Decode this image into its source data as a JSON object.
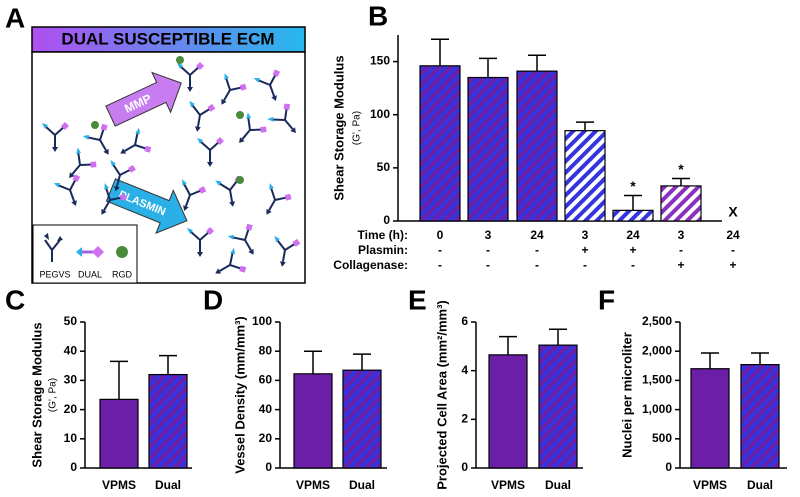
{
  "diagram": {
    "panel": "A",
    "title": "DUAL SUSCEPTIBLE ECM",
    "arrows": [
      "MMP",
      "PLASMIN"
    ],
    "legend": [
      "PEGVS",
      "DUAL",
      "RGD"
    ]
  },
  "chart_data": [
    {
      "panel": "B",
      "type": "bar",
      "ylabel": "Shear Storage Modulus",
      "ylabel_sub": "(G', Pa)",
      "xlabel": "Time (h):",
      "categories": [
        "0",
        "3",
        "24",
        "3",
        "24",
        "3",
        "24"
      ],
      "values": [
        146,
        135,
        141,
        85,
        10,
        33,
        null
      ],
      "errors": [
        25,
        18,
        15,
        8,
        14,
        7,
        null
      ],
      "significance": [
        null,
        null,
        null,
        null,
        "*",
        "*",
        "X"
      ],
      "category_rows": [
        {
          "name": "Plasmin:",
          "values": [
            "-",
            "-",
            "-",
            "+",
            "+",
            "-",
            "-"
          ]
        },
        {
          "name": "Collagenase:",
          "values": [
            "-",
            "-",
            "-",
            "-",
            "-",
            "+",
            "+"
          ]
        }
      ],
      "fill_colors": [
        "#6b1fa6",
        "#6b1fa6",
        "#6b1fa6",
        "#ffffff",
        "#ffffff",
        "#ffffff",
        "#ffffff"
      ],
      "hatch_colors": [
        "#3535e0",
        "#3535e0",
        "#3535e0",
        "#3535e0",
        "#3535e0",
        "#8a2fbf",
        "#8a2fbf"
      ],
      "ylim": [
        0,
        175
      ],
      "yticks": [
        0,
        50,
        100,
        150
      ]
    },
    {
      "panel": "C",
      "type": "bar",
      "ylabel": "Shear Storage Modulus",
      "ylabel_sub": "(G', Pa)",
      "categories": [
        "VPMS",
        "Dual"
      ],
      "values": [
        23.5,
        32
      ],
      "errors": [
        13,
        6.5
      ],
      "fill_colors": [
        "#6b1fa6",
        "#6b1fa6"
      ],
      "hatch_colors": [
        null,
        "#3535e0"
      ],
      "ylim": [
        0,
        50
      ],
      "yticks": [
        0,
        10,
        20,
        30,
        40,
        50
      ]
    },
    {
      "panel": "D",
      "type": "bar",
      "ylabel": "Vessel Density (mm/mm³)",
      "categories": [
        "VPMS",
        "Dual"
      ],
      "values": [
        64.5,
        67
      ],
      "errors": [
        15.5,
        11
      ],
      "fill_colors": [
        "#6b1fa6",
        "#6b1fa6"
      ],
      "hatch_colors": [
        null,
        "#3535e0"
      ],
      "ylim": [
        0,
        100
      ],
      "yticks": [
        0,
        20,
        40,
        60,
        80,
        100
      ]
    },
    {
      "panel": "E",
      "type": "bar",
      "ylabel": "Projected Cell Area (mm²/mm³)",
      "categories": [
        "VPMS",
        "Dual"
      ],
      "values": [
        4.65,
        5.05
      ],
      "errors": [
        0.75,
        0.65
      ],
      "fill_colors": [
        "#6b1fa6",
        "#6b1fa6"
      ],
      "hatch_colors": [
        null,
        "#3535e0"
      ],
      "ylim": [
        0,
        6
      ],
      "yticks": [
        0,
        2,
        4,
        6
      ]
    },
    {
      "panel": "F",
      "type": "bar",
      "ylabel": "Nuclei per microliter",
      "categories": [
        "VPMS",
        "Dual"
      ],
      "values": [
        1700,
        1770
      ],
      "errors": [
        270,
        200
      ],
      "fill_colors": [
        "#6b1fa6",
        "#6b1fa6"
      ],
      "hatch_colors": [
        null,
        "#3535e0"
      ],
      "ylim": [
        0,
        2500
      ],
      "yticks": [
        0,
        500,
        {
          "value": 1000,
          "label": "1,000"
        },
        {
          "value": 1500,
          "label": "1,500"
        },
        {
          "value": 2000,
          "label": "2,000"
        },
        {
          "value": 2500,
          "label": "2,500"
        }
      ]
    }
  ]
}
